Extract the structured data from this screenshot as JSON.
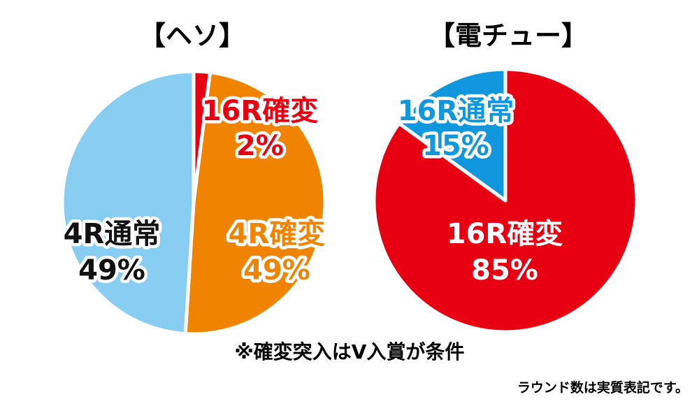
{
  "chart_data": [
    {
      "type": "pie",
      "title": "【ヘソ】",
      "slices": [
        {
          "label": "16R確変",
          "value": 2,
          "value_text": "2%",
          "color": "#e60012"
        },
        {
          "label": "4R確変",
          "value": 49,
          "value_text": "49%",
          "color": "#f08300"
        },
        {
          "label": "4R通常",
          "value": 49,
          "value_text": "49%",
          "color": "#87cef2"
        }
      ]
    },
    {
      "type": "pie",
      "title": "【電チュー】",
      "slices": [
        {
          "label": "16R確変",
          "value": 85,
          "value_text": "85%",
          "color": "#e60012"
        },
        {
          "label": "16R通常",
          "value": 15,
          "value_text": "15%",
          "color": "#1197dd"
        }
      ]
    }
  ],
  "notes": {
    "condition": "※確変突入はV入賞が条件",
    "round_note": "ラウンド数は実質表記です。"
  }
}
